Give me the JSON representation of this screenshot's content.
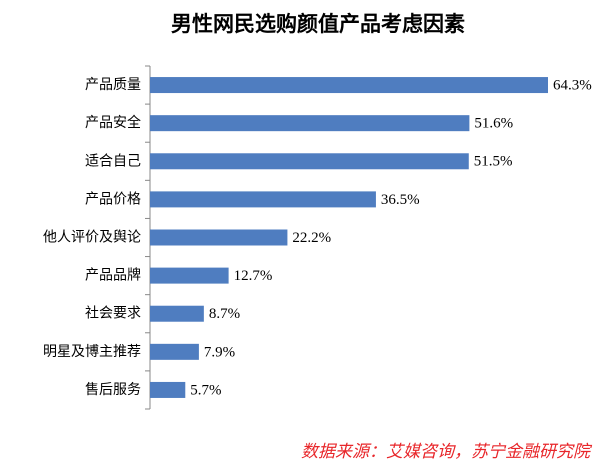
{
  "chart_data": {
    "type": "bar",
    "orientation": "horizontal",
    "title": "男性网民选购颜值产品考虑因素",
    "categories": [
      "产品质量",
      "产品安全",
      "适合自己",
      "产品价格",
      "他人评价及舆论",
      "产品品牌",
      "社会要求",
      "明星及博主推荐",
      "售后服务"
    ],
    "values": [
      64.3,
      51.6,
      51.5,
      36.5,
      22.2,
      12.7,
      8.7,
      7.9,
      5.7
    ],
    "value_labels": [
      "64.3%",
      "51.6%",
      "51.5%",
      "36.5%",
      "22.2%",
      "12.7%",
      "8.7%",
      "7.9%",
      "5.7%"
    ],
    "color": "#4f7dc0",
    "annotation": "数据来源：艾媒咨询，苏宁金融研究院"
  }
}
